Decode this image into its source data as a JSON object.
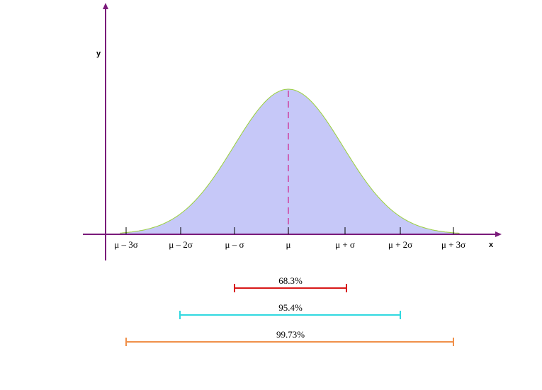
{
  "axes": {
    "y_label": "y",
    "x_label": "x"
  },
  "x_ticks": [
    "μ – 3σ",
    "μ – 2σ",
    "μ – σ",
    "μ",
    "μ + σ",
    "μ + 2σ",
    "μ + 3σ"
  ],
  "intervals": [
    {
      "label": "68.3%"
    },
    {
      "label": "95.4%"
    },
    {
      "label": "99.73%"
    }
  ]
}
